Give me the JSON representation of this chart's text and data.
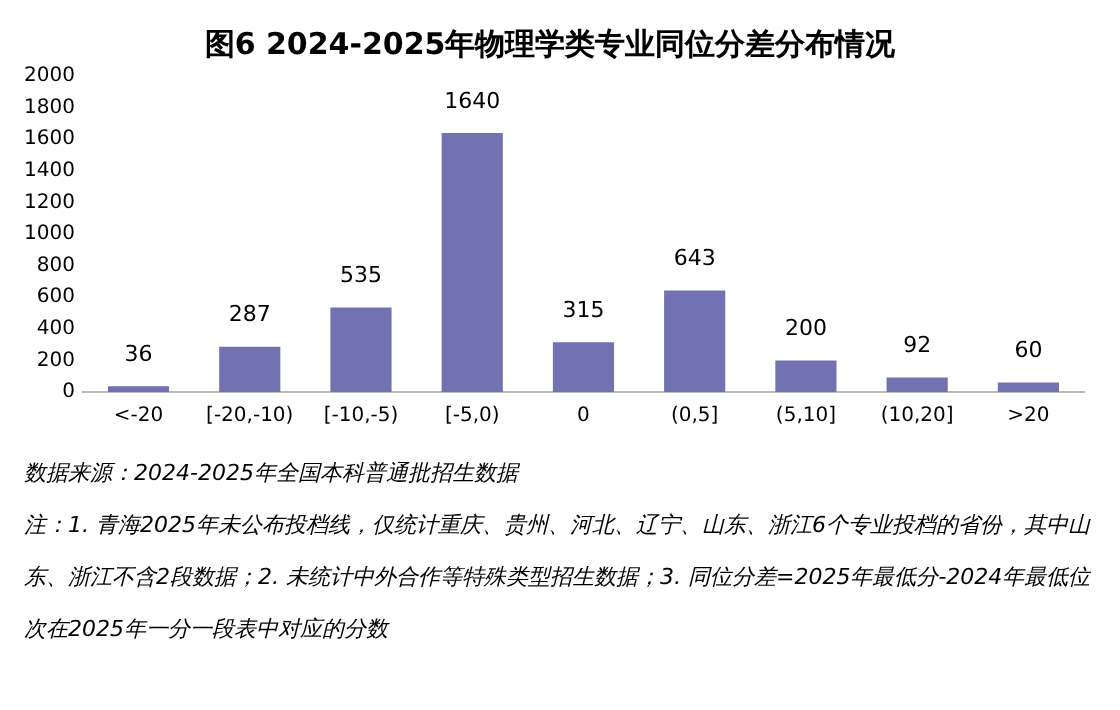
{
  "chart_data": {
    "type": "bar",
    "title": "图6 2024-2025年物理学类专业同位分差分布情况",
    "categories": [
      "<-20",
      "[-20,-10)",
      "[-10,-5)",
      "[-5,0)",
      "0",
      "(0,5]",
      "(5,10]",
      "(10,20]",
      ">20"
    ],
    "values": [
      36,
      287,
      535,
      1640,
      315,
      643,
      200,
      92,
      60
    ],
    "color": "#7272b2",
    "ylim": [
      0,
      2000
    ],
    "yticks": [
      0,
      200,
      400,
      600,
      800,
      1000,
      1200,
      1400,
      1600,
      1800,
      2000
    ],
    "grid": false,
    "legend": false,
    "data_labels": true,
    "annotations": [
      "数据来源：2024-2025年全国本科普通批招生数据",
      "注：1. 青海2025年未公布投档线，仅统计重庆、贵州、河北、辽宁、山东、浙江6个专业投档的省份，其中山东、浙江不含2段数据；2. 未统计中外合作等特殊类型招生数据；3. 同位分差=2025年最低分-2024年最低位次在2025年一分一段表中对应的分数"
    ]
  }
}
